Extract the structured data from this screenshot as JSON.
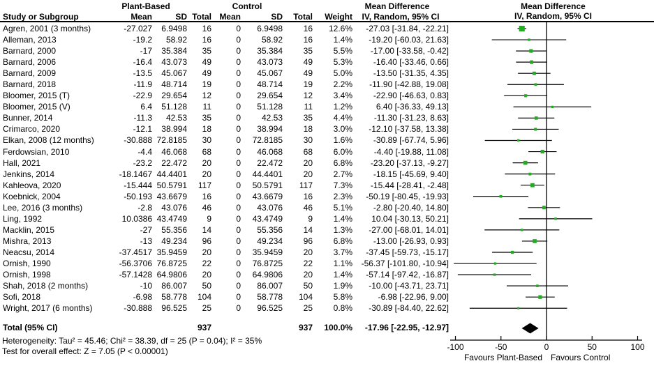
{
  "table": {
    "group_headers": {
      "plant_based": "Plant-Based",
      "control": "Control"
    },
    "columns": {
      "study": "Study or Subgroup",
      "mean": "Mean",
      "sd": "SD",
      "total": "Total",
      "weight": "Weight"
    },
    "md_header": {
      "line1": "Mean Difference",
      "line2": "IV, Random, 95% CI"
    }
  },
  "chart_data": {
    "type": "forest",
    "effect_measure": "Mean Difference",
    "method": "IV, Random, 95% CI",
    "studies": [
      {
        "name": "Agren, 2001 (3 months)",
        "pb_mean": "-27.027",
        "pb_sd": "6.9498",
        "pb_total": "16",
        "c_mean": "0",
        "c_sd": "6.9498",
        "c_total": "16",
        "weight": "12.6%",
        "md_text": "-27.03 [-31.84, -22.21]",
        "est": -27.03,
        "lo": -31.84,
        "hi": -22.21
      },
      {
        "name": "Alleman, 2013",
        "pb_mean": "-19.2",
        "pb_sd": "58.92",
        "pb_total": "16",
        "c_mean": "0",
        "c_sd": "58.92",
        "c_total": "16",
        "weight": "1.4%",
        "md_text": "-19.20 [-60.03, 21.63]",
        "est": -19.2,
        "lo": -60.03,
        "hi": 21.63
      },
      {
        "name": "Barnard, 2000",
        "pb_mean": "-17",
        "pb_sd": "35.384",
        "pb_total": "35",
        "c_mean": "0",
        "c_sd": "35.384",
        "c_total": "35",
        "weight": "5.5%",
        "md_text": "-17.00 [-33.58, -0.42]",
        "est": -17.0,
        "lo": -33.58,
        "hi": -0.42
      },
      {
        "name": "Barnard, 2006",
        "pb_mean": "-16.4",
        "pb_sd": "43.073",
        "pb_total": "49",
        "c_mean": "0",
        "c_sd": "43.073",
        "c_total": "49",
        "weight": "5.3%",
        "md_text": "-16.40 [-33.46, 0.66]",
        "est": -16.4,
        "lo": -33.46,
        "hi": 0.66
      },
      {
        "name": "Barnard, 2009",
        "pb_mean": "-13.5",
        "pb_sd": "45.067",
        "pb_total": "49",
        "c_mean": "0",
        "c_sd": "45.067",
        "c_total": "49",
        "weight": "5.0%",
        "md_text": "-13.50 [-31.35, 4.35]",
        "est": -13.5,
        "lo": -31.35,
        "hi": 4.35
      },
      {
        "name": "Barnard, 2018",
        "pb_mean": "-11.9",
        "pb_sd": "48.714",
        "pb_total": "19",
        "c_mean": "0",
        "c_sd": "48.714",
        "c_total": "19",
        "weight": "2.2%",
        "md_text": "-11.90 [-42.88, 19.08]",
        "est": -11.9,
        "lo": -42.88,
        "hi": 19.08
      },
      {
        "name": "Bloomer, 2015 (T)",
        "pb_mean": "-22.9",
        "pb_sd": "29.654",
        "pb_total": "12",
        "c_mean": "0",
        "c_sd": "29.654",
        "c_total": "12",
        "weight": "3.4%",
        "md_text": "-22.90 [-46.63, 0.83]",
        "est": -22.9,
        "lo": -46.63,
        "hi": 0.83
      },
      {
        "name": "Bloomer, 2015 (V)",
        "pb_mean": "6.4",
        "pb_sd": "51.128",
        "pb_total": "11",
        "c_mean": "0",
        "c_sd": "51.128",
        "c_total": "11",
        "weight": "1.2%",
        "md_text": "6.40 [-36.33, 49.13]",
        "est": 6.4,
        "lo": -36.33,
        "hi": 49.13
      },
      {
        "name": "Bunner, 2014",
        "pb_mean": "-11.3",
        "pb_sd": "42.53",
        "pb_total": "35",
        "c_mean": "0",
        "c_sd": "42.53",
        "c_total": "35",
        "weight": "4.4%",
        "md_text": "-11.30 [-31.23, 8.63]",
        "est": -11.3,
        "lo": -31.23,
        "hi": 8.63
      },
      {
        "name": "Crimarco, 2020",
        "pb_mean": "-12.1",
        "pb_sd": "38.994",
        "pb_total": "18",
        "c_mean": "0",
        "c_sd": "38.994",
        "c_total": "18",
        "weight": "3.0%",
        "md_text": "-12.10 [-37.58, 13.38]",
        "est": -12.1,
        "lo": -37.58,
        "hi": 13.38
      },
      {
        "name": "Elkan, 2008 (12 months)",
        "pb_mean": "-30.888",
        "pb_sd": "72.8185",
        "pb_total": "30",
        "c_mean": "0",
        "c_sd": "72.8185",
        "c_total": "30",
        "weight": "1.6%",
        "md_text": "-30.89 [-67.74, 5.96]",
        "est": -30.89,
        "lo": -67.74,
        "hi": 5.96
      },
      {
        "name": "Ferdowsian, 2010",
        "pb_mean": "-4.4",
        "pb_sd": "46.068",
        "pb_total": "68",
        "c_mean": "0",
        "c_sd": "46.068",
        "c_total": "68",
        "weight": "6.0%",
        "md_text": "-4.40 [-19.88, 11.08]",
        "est": -4.4,
        "lo": -19.88,
        "hi": 11.08
      },
      {
        "name": "Hall, 2021",
        "pb_mean": "-23.2",
        "pb_sd": "22.472",
        "pb_total": "20",
        "c_mean": "0",
        "c_sd": "22.472",
        "c_total": "20",
        "weight": "6.8%",
        "md_text": "-23.20 [-37.13, -9.27]",
        "est": -23.2,
        "lo": -37.13,
        "hi": -9.27
      },
      {
        "name": "Jenkins, 2014",
        "pb_mean": "-18.1467",
        "pb_sd": "44.4401",
        "pb_total": "20",
        "c_mean": "0",
        "c_sd": "44.4401",
        "c_total": "20",
        "weight": "2.7%",
        "md_text": "-18.15 [-45.69, 9.40]",
        "est": -18.15,
        "lo": -45.69,
        "hi": 9.4
      },
      {
        "name": "Kahleova, 2020",
        "pb_mean": "-15.444",
        "pb_sd": "50.5791",
        "pb_total": "117",
        "c_mean": "0",
        "c_sd": "50.5791",
        "c_total": "117",
        "weight": "7.3%",
        "md_text": "-15.44 [-28.41, -2.48]",
        "est": -15.44,
        "lo": -28.41,
        "hi": -2.48
      },
      {
        "name": "Koebnick, 2004",
        "pb_mean": "-50.193",
        "pb_sd": "43.6679",
        "pb_total": "16",
        "c_mean": "0",
        "c_sd": "43.6679",
        "c_total": "16",
        "weight": "2.3%",
        "md_text": "-50.19 [-80.45, -19.93]",
        "est": -50.19,
        "lo": -80.45,
        "hi": -19.93
      },
      {
        "name": "Lee, 2016 (3 months)",
        "pb_mean": "-2.8",
        "pb_sd": "43.076",
        "pb_total": "46",
        "c_mean": "0",
        "c_sd": "43.076",
        "c_total": "46",
        "weight": "5.1%",
        "md_text": "-2.80 [-20.40, 14.80]",
        "est": -2.8,
        "lo": -20.4,
        "hi": 14.8
      },
      {
        "name": "Ling, 1992",
        "pb_mean": "10.0386",
        "pb_sd": "43.4749",
        "pb_total": "9",
        "c_mean": "0",
        "c_sd": "43.4749",
        "c_total": "9",
        "weight": "1.4%",
        "md_text": "10.04 [-30.13, 50.21]",
        "est": 10.04,
        "lo": -30.13,
        "hi": 50.21
      },
      {
        "name": "Macklin, 2015",
        "pb_mean": "-27",
        "pb_sd": "55.356",
        "pb_total": "14",
        "c_mean": "0",
        "c_sd": "55.356",
        "c_total": "14",
        "weight": "1.3%",
        "md_text": "-27.00 [-68.01, 14.01]",
        "est": -27.0,
        "lo": -68.01,
        "hi": 14.01
      },
      {
        "name": "Mishra, 2013",
        "pb_mean": "-13",
        "pb_sd": "49.234",
        "pb_total": "96",
        "c_mean": "0",
        "c_sd": "49.234",
        "c_total": "96",
        "weight": "6.8%",
        "md_text": "-13.00 [-26.93, 0.93]",
        "est": -13.0,
        "lo": -26.93,
        "hi": 0.93
      },
      {
        "name": "Neacsu, 2014",
        "pb_mean": "-37.4517",
        "pb_sd": "35.9459",
        "pb_total": "20",
        "c_mean": "0",
        "c_sd": "35.9459",
        "c_total": "20",
        "weight": "3.7%",
        "md_text": "-37.45 [-59.73, -15.17]",
        "est": -37.45,
        "lo": -59.73,
        "hi": -15.17
      },
      {
        "name": "Ornish, 1990",
        "pb_mean": "-56.3706",
        "pb_sd": "76.8725",
        "pb_total": "22",
        "c_mean": "0",
        "c_sd": "76.8725",
        "c_total": "22",
        "weight": "1.1%",
        "md_text": "-56.37 [-101.80, -10.94]",
        "est": -56.37,
        "lo": -101.8,
        "hi": -10.94
      },
      {
        "name": "Ornish, 1998",
        "pb_mean": "-57.1428",
        "pb_sd": "64.9806",
        "pb_total": "20",
        "c_mean": "0",
        "c_sd": "64.9806",
        "c_total": "20",
        "weight": "1.4%",
        "md_text": "-57.14 [-97.42, -16.87]",
        "est": -57.14,
        "lo": -97.42,
        "hi": -16.87
      },
      {
        "name": "Shah, 2018 (2 months)",
        "pb_mean": "-10",
        "pb_sd": "86.007",
        "pb_total": "50",
        "c_mean": "0",
        "c_sd": "86.007",
        "c_total": "50",
        "weight": "1.9%",
        "md_text": "-10.00 [-43.71, 23.71]",
        "est": -10.0,
        "lo": -43.71,
        "hi": 23.71
      },
      {
        "name": "Sofi, 2018",
        "pb_mean": "-6.98",
        "pb_sd": "58.778",
        "pb_total": "104",
        "c_mean": "0",
        "c_sd": "58.778",
        "c_total": "104",
        "weight": "5.8%",
        "md_text": "-6.98 [-22.96, 9.00]",
        "est": -6.98,
        "lo": -22.96,
        "hi": 9.0
      },
      {
        "name": "Wright, 2017 (6 months)",
        "pb_mean": "-30.888",
        "pb_sd": "96.525",
        "pb_total": "25",
        "c_mean": "0",
        "c_sd": "96.525",
        "c_total": "25",
        "weight": "0.8%",
        "md_text": "-30.89 [-84.40, 22.62]",
        "est": -30.89,
        "lo": -84.4,
        "hi": 22.62
      }
    ],
    "total": {
      "label": "Total (95% CI)",
      "pb_total": "937",
      "c_total": "937",
      "weight": "100.0%",
      "md_text": "-17.96 [-22.95, -12.97]",
      "est": -17.96,
      "lo": -22.95,
      "hi": -12.97
    },
    "heterogeneity": "Heterogeneity: Tau² = 45.46; Chi² = 38.39, df = 25 (P = 0.04); I² = 35%",
    "overall_effect": "Test for overall effect: Z = 7.05 (P < 0.00001)",
    "axis": {
      "min": -100,
      "max": 100,
      "ticks": [
        -100,
        -50,
        0,
        50,
        100
      ],
      "favours_left": "Favours Plant-Based",
      "favours_right": "Favours Control"
    },
    "colors": {
      "square": "#22ac22",
      "diamond": "#000000",
      "line": "#000000"
    }
  }
}
